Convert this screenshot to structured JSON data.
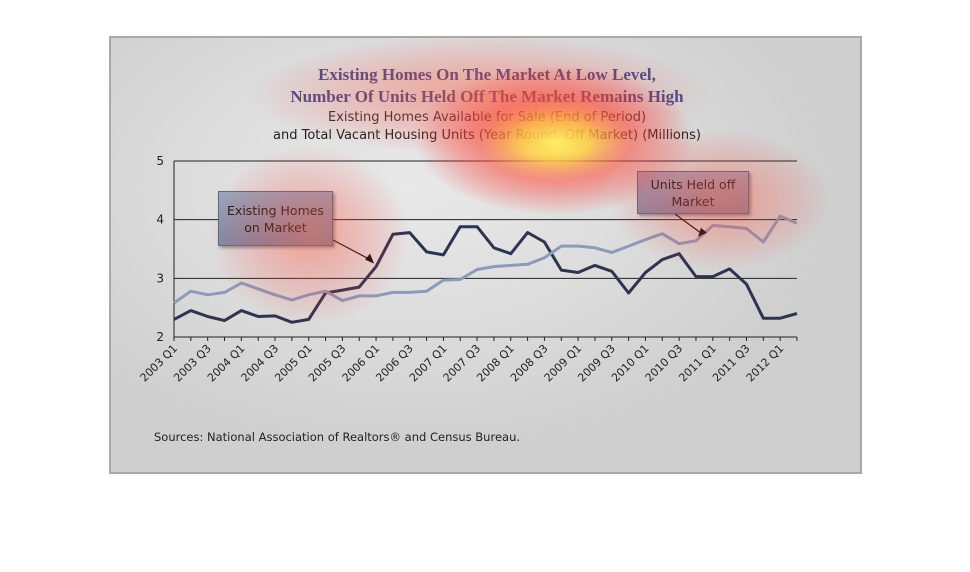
{
  "chart_data": {
    "type": "line",
    "title": "Existing Homes On The Market At Low Level,",
    "title_line2": "Number Of Units Held Off The Market Remains High",
    "subtitle": "Existing Homes Available for Sale (End of Period)",
    "subtitle_line2": "and Total Vacant Housing Units (Year Round, Off Market) (Millions)",
    "ylim": [
      2,
      5
    ],
    "yticks": [
      "2",
      "3",
      "4",
      "5"
    ],
    "grid": true,
    "x": [
      "2003 Q1",
      "2003 Q2",
      "2003 Q3",
      "2003 Q4",
      "2004 Q1",
      "2004 Q2",
      "2004 Q3",
      "2004 Q4",
      "2005 Q1",
      "2005 Q2",
      "2005 Q3",
      "2005 Q4",
      "2006 Q1",
      "2006 Q2",
      "2006 Q3",
      "2006 Q4",
      "2007 Q1",
      "2007 Q2",
      "2007 Q3",
      "2007 Q4",
      "2008 Q1",
      "2008 Q2",
      "2008 Q3",
      "2008 Q4",
      "2009 Q1",
      "2009 Q2",
      "2009 Q3",
      "2009 Q4",
      "2010 Q1",
      "2010 Q2",
      "2010 Q3",
      "2010 Q4",
      "2011 Q1",
      "2011 Q2",
      "2011 Q3",
      "2011 Q4",
      "2012 Q1",
      "2012 Q2"
    ],
    "xtick_labels": [
      "2003 Q1",
      "2003 Q3",
      "2004 Q1",
      "2004 Q3",
      "2005 Q1",
      "2005 Q3",
      "2006 Q1",
      "2006 Q3",
      "2007 Q1",
      "2007 Q3",
      "2008 Q1",
      "2008 Q3",
      "2009 Q1",
      "2009 Q3",
      "2010 Q1",
      "2010 Q3",
      "2011 Q1",
      "2011 Q3",
      "2012 Q1"
    ],
    "series": [
      {
        "name": "Existing Homes on Market",
        "color": "#2e3450",
        "values": [
          2.3,
          2.45,
          2.35,
          2.28,
          2.45,
          2.35,
          2.36,
          2.25,
          2.3,
          2.75,
          2.8,
          2.85,
          3.2,
          3.75,
          3.78,
          3.45,
          3.4,
          3.88,
          3.88,
          3.52,
          3.42,
          3.78,
          3.62,
          3.14,
          3.1,
          3.22,
          3.12,
          2.75,
          3.1,
          3.32,
          3.42,
          3.03,
          3.03,
          3.16,
          2.9,
          2.32,
          2.32,
          2.4
        ]
      },
      {
        "name": "Units Held off Market",
        "color": "#8d9ab8",
        "values": [
          2.58,
          2.78,
          2.72,
          2.76,
          2.92,
          2.82,
          2.72,
          2.63,
          2.72,
          2.78,
          2.62,
          2.7,
          2.7,
          2.76,
          2.76,
          2.78,
          2.97,
          2.98,
          3.15,
          3.2,
          3.22,
          3.24,
          3.35,
          3.55,
          3.55,
          3.52,
          3.44,
          3.55,
          3.66,
          3.76,
          3.59,
          3.64,
          3.9,
          3.88,
          3.85,
          3.62,
          4.06,
          3.94
        ]
      }
    ],
    "annotations": [
      {
        "id": "homes",
        "lines": [
          "Existing Homes",
          "on Market"
        ]
      },
      {
        "id": "vacant",
        "lines": [
          "Units Held off",
          "Market"
        ]
      }
    ],
    "source": "Sources: National Association of Realtors® and Census Bureau."
  }
}
